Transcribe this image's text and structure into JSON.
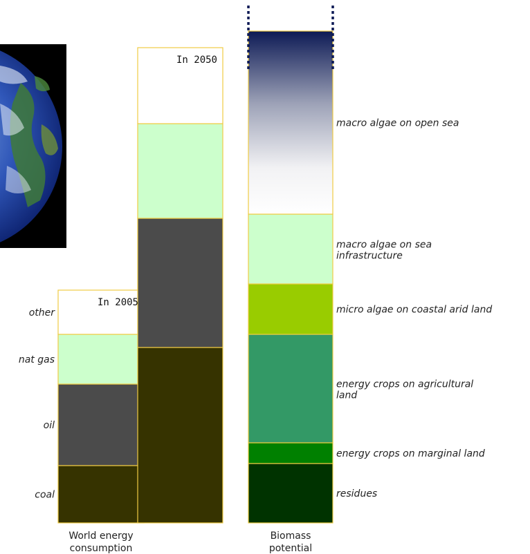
{
  "chart_data": {
    "type": "bar",
    "stacked": true,
    "series_colors": {
      "coal": "#363300",
      "oil": "#4b4b4b",
      "nat gas": "#ccffcc",
      "other": "#ffffff",
      "outline": "#f0cc44"
    },
    "world_energy": {
      "caption_line1": "World energy",
      "caption_line2": "consumption",
      "categories": [
        "coal",
        "oil",
        "nat gas",
        "other"
      ],
      "bars": [
        {
          "label": "In 2005",
          "values": [
            83,
            118,
            72,
            64
          ]
        },
        {
          "label": "In 2050",
          "values": [
            254,
            187,
            137,
            110
          ]
        }
      ]
    },
    "biomass": {
      "caption_line1": "Biomass",
      "caption_line2": "potential",
      "segments": [
        {
          "name": "residues",
          "value": 86,
          "color": "#003300"
        },
        {
          "name": "energy crops on marginal land",
          "value": 30,
          "color": "#008000"
        },
        {
          "name": "energy crops on agricultural land",
          "value": 157,
          "color": "#339966"
        },
        {
          "name": "micro algae on coastal arid land",
          "value": 73,
          "color": "#99cc00"
        },
        {
          "name": "macro algae on sea infrastructure",
          "value": 101,
          "color": "#ccffcc"
        },
        {
          "name": "macro algae on open sea",
          "value": 265,
          "gradient": [
            "#ffffff",
            "#0d1a55"
          ]
        }
      ]
    }
  }
}
